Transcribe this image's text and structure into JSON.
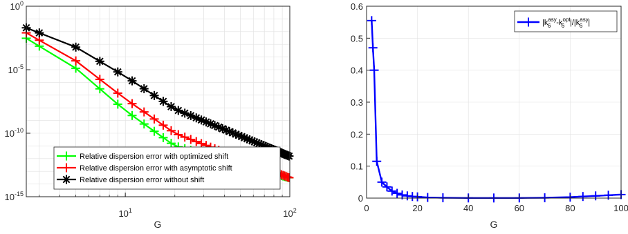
{
  "chart_data": [
    {
      "type": "line",
      "xscale": "log",
      "yscale": "log",
      "xlim": [
        2.5,
        100
      ],
      "ylim": [
        1e-15,
        1
      ],
      "xlabel": "G",
      "ylabel": "",
      "grid": true,
      "legend_position": "bottom-left",
      "x_ticks": [
        {
          "value": 10,
          "base": "10",
          "exp": "1"
        },
        {
          "value": 100,
          "base": "10",
          "exp": "2"
        }
      ],
      "y_ticks": [
        {
          "value": 1,
          "base": "10",
          "exp": "0"
        },
        {
          "value": 1e-05,
          "base": "10",
          "exp": "-5"
        },
        {
          "value": 1e-10,
          "base": "10",
          "exp": "-10"
        },
        {
          "value": 1e-15,
          "base": "10",
          "exp": "-15"
        }
      ],
      "series": [
        {
          "name": "Relative dispersion error with optimized shift",
          "color": "#00ff00",
          "marker": "plus",
          "x_range": [
            2.5,
            100
          ],
          "x_step": 2,
          "anchors": [
            [
              2.5,
              0.003
            ],
            [
              5,
              1.3e-05
            ],
            [
              10,
              6e-09
            ],
            [
              20,
              1e-11
            ],
            [
              100,
              3e-14
            ]
          ]
        },
        {
          "name": "Relative dispersion error with asymptotic shift",
          "color": "#ff0000",
          "marker": "plus",
          "x_range": [
            2.5,
            100
          ],
          "x_step": 2,
          "anchors": [
            [
              2.5,
              0.008
            ],
            [
              5,
              5e-05
            ],
            [
              10,
              5e-08
            ],
            [
              20,
              1e-10
            ],
            [
              100,
              3e-14
            ]
          ]
        },
        {
          "name": "Relative dispersion error without shift",
          "color": "#000000",
          "marker": "asterisk",
          "x_range": [
            2.5,
            100
          ],
          "x_step": 2,
          "anchors": [
            [
              2.5,
              0.02
            ],
            [
              5,
              0.0006
            ],
            [
              10,
              3e-06
            ],
            [
              20,
              8e-09
            ],
            [
              100,
              1.5e-12
            ]
          ]
        }
      ]
    },
    {
      "type": "line",
      "xlim": [
        0,
        100
      ],
      "ylim": [
        0,
        0.6
      ],
      "xlabel": "G",
      "ylabel": "",
      "grid": true,
      "legend_position": "top-right",
      "x_ticks": [
        0,
        20,
        40,
        60,
        80,
        100
      ],
      "y_ticks": [
        0,
        0.1,
        0.2,
        0.3,
        0.4,
        0.5,
        0.6
      ],
      "series": [
        {
          "color": "#0000ff",
          "marker": "plus",
          "legend_parts": [
            "|k",
            "asy",
            "6",
            "-k",
            "opt",
            "6",
            "|/|k",
            "asy",
            "6",
            "|"
          ],
          "x": [
            2,
            2.5,
            3,
            4,
            6,
            8,
            10,
            12,
            14,
            16,
            18,
            20,
            24,
            30,
            40,
            50,
            60,
            70,
            80,
            85,
            90,
            95,
            100
          ],
          "y": [
            0.555,
            0.47,
            0.4,
            0.115,
            0.05,
            0.035,
            0.022,
            0.015,
            0.01,
            0.007,
            0.005,
            0.004,
            0.002,
            0.001,
            0.0005,
            0.0004,
            0.0005,
            0.001,
            0.003,
            0.005,
            0.007,
            0.009,
            0.011
          ]
        }
      ]
    }
  ]
}
